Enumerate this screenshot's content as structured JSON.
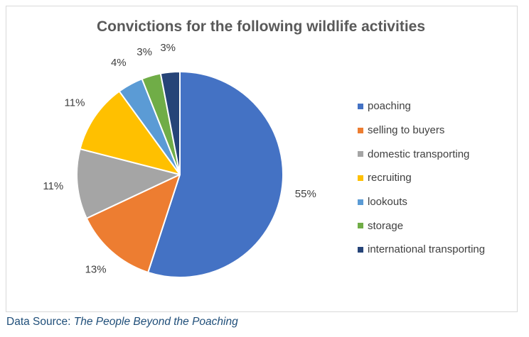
{
  "chart_data": {
    "type": "pie",
    "title": "Convictions for the following wildlife activities",
    "categories": [
      "poaching",
      "selling to buyers",
      "domestic transporting",
      "recruiting",
      "lookouts",
      "storage",
      "international transporting"
    ],
    "values": [
      55,
      13,
      11,
      11,
      4,
      3,
      3
    ],
    "data_labels": [
      "55%",
      "13%",
      "11%",
      "11%",
      "4%",
      "3%",
      "3%"
    ],
    "colors": [
      "#4472C4",
      "#ED7D31",
      "#A5A5A5",
      "#FFC000",
      "#5B9BD5",
      "#70AD47",
      "#264478"
    ],
    "legend_position": "right"
  },
  "source": {
    "prefix": "Data Source: ",
    "title": "The People Beyond the Poaching"
  }
}
